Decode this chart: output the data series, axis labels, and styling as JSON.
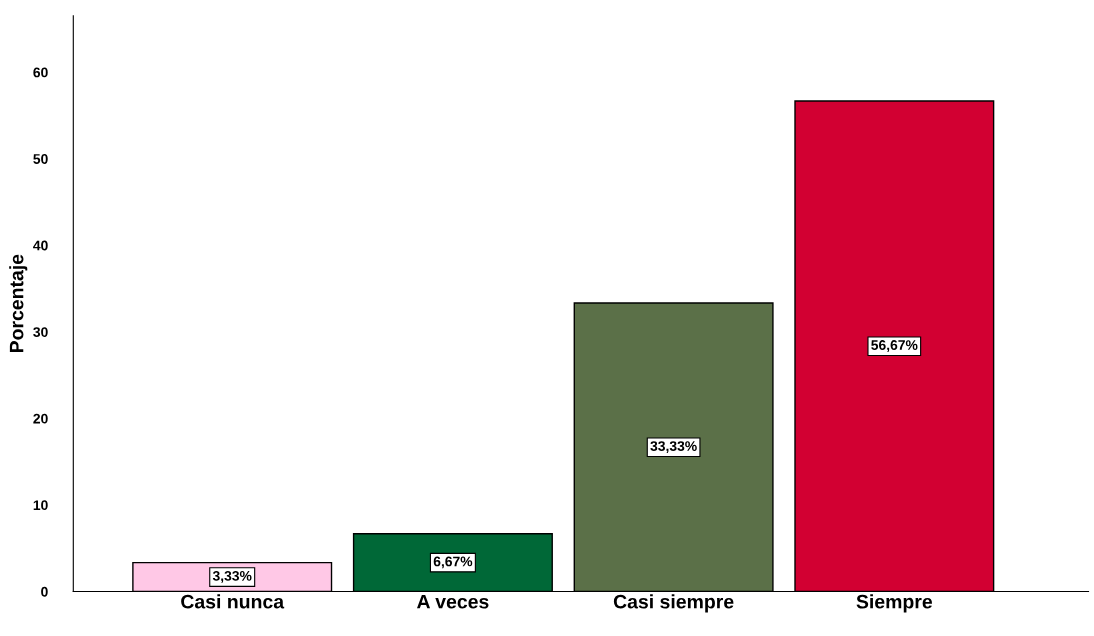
{
  "chart_data": {
    "type": "bar",
    "ylabel": "Porcentaje",
    "categories": [
      "Casi nunca",
      "A veces",
      "Casi siempre",
      "Siempre"
    ],
    "values": [
      3.33,
      6.67,
      33.33,
      56.67
    ],
    "colors": [
      "#ffc8e6",
      "#006837",
      "#5b7048",
      "#d20032"
    ],
    "value_labels": [
      "3,33%",
      "6,67%",
      "33,33%",
      "56,67%"
    ],
    "ylim": [
      0,
      66.5
    ],
    "yticks": [
      0,
      10,
      20,
      30,
      40,
      50,
      60
    ],
    "grid": false,
    "legend": false
  }
}
